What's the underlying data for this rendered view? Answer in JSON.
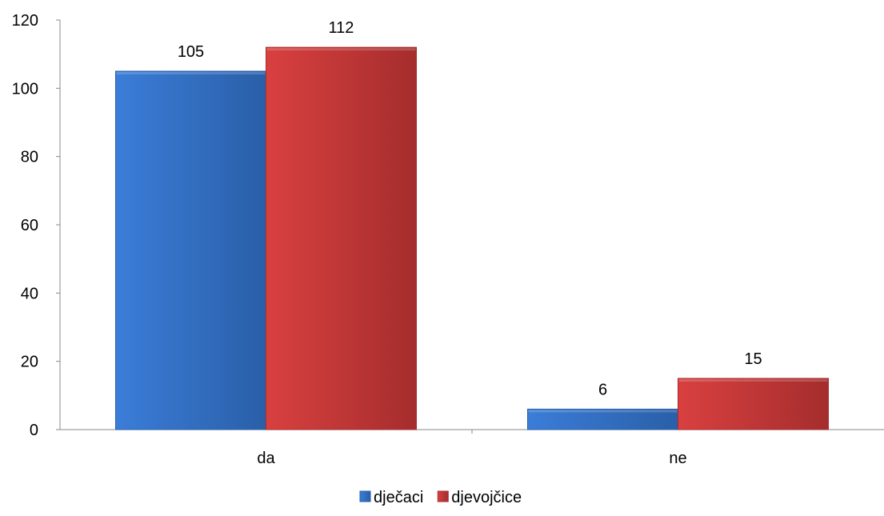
{
  "chart_data": {
    "type": "bar",
    "title": "",
    "xlabel": "",
    "ylabel": "",
    "categories": [
      "da",
      "ne"
    ],
    "series": [
      {
        "name": "dječaci",
        "values": [
          105,
          6
        ],
        "color": "#3b7dd8",
        "color_dark": "#2a5fa8"
      },
      {
        "name": "djevojčice",
        "values": [
          112,
          15
        ],
        "color": "#d94040",
        "color_dark": "#a52d2d"
      }
    ],
    "ylim": [
      0,
      120
    ],
    "yticks": [
      0,
      20,
      40,
      60,
      80,
      100,
      120
    ],
    "grid": false,
    "legend_position": "bottom",
    "data_labels": true
  }
}
